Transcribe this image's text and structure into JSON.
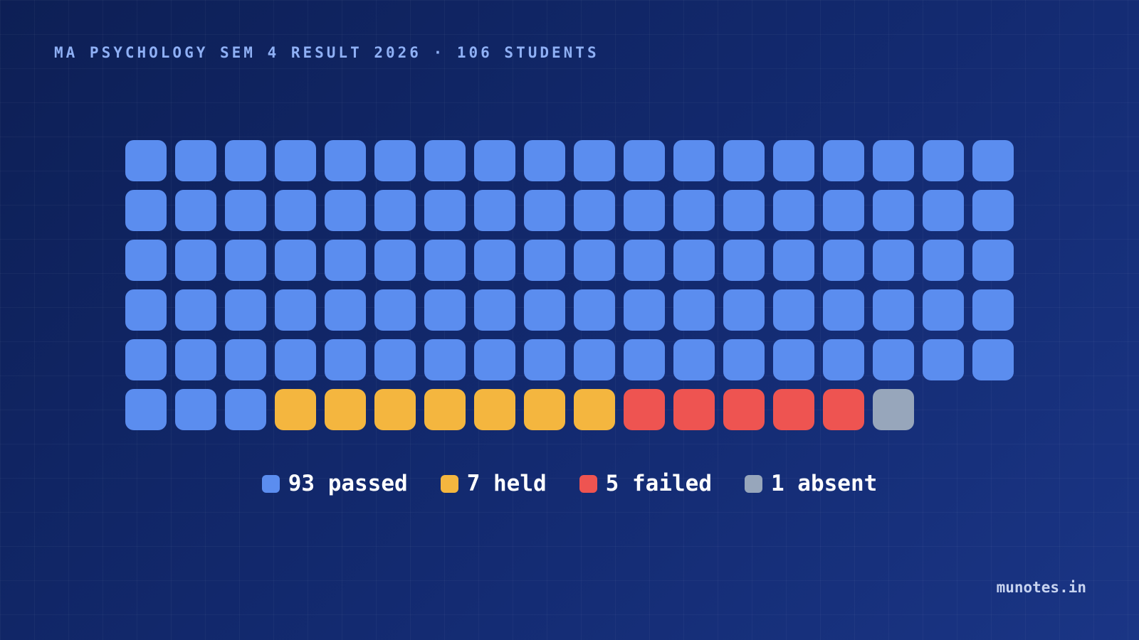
{
  "title": "MA PSYCHOLOGY SEM 4 RESULT 2026 · 106 STUDENTS",
  "credit": "munotes.in",
  "chart_data": {
    "type": "waffle",
    "total": 106,
    "columns": 18,
    "series": [
      {
        "name": "passed",
        "value": 93,
        "color": "#5b8def",
        "label": "93 passed"
      },
      {
        "name": "held",
        "value": 7,
        "color": "#f4b63f",
        "label": "7 held"
      },
      {
        "name": "failed",
        "value": 5,
        "color": "#ee5451",
        "label": "5 failed"
      },
      {
        "name": "absent",
        "value": 1,
        "color": "#97a6bb",
        "label": "1 absent"
      }
    ]
  }
}
